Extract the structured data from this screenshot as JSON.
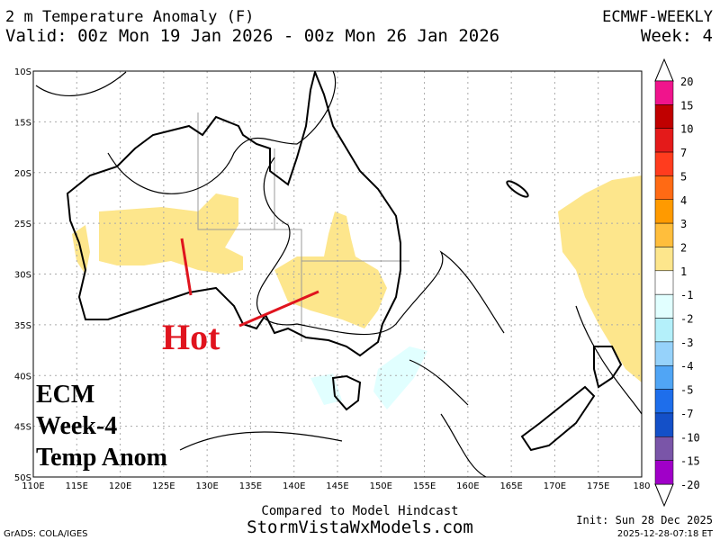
{
  "header": {
    "title": "2 m Temperature Anomaly (F)",
    "valid": "Valid: 00z Mon 19 Jan 2026 - 00z Mon 26 Jan 2026",
    "model": "ECMWF-WEEKLY",
    "week": "Week: 4"
  },
  "map": {
    "lat_labels": [
      "10S",
      "15S",
      "20S",
      "25S",
      "30S",
      "35S",
      "40S",
      "45S",
      "50S"
    ],
    "lon_labels": [
      "110E",
      "115E",
      "120E",
      "125E",
      "130E",
      "135E",
      "140E",
      "145E",
      "150E",
      "155E",
      "160E",
      "165E",
      "170E",
      "175E",
      "180"
    ],
    "annotation": "Hot",
    "overlay": [
      "ECM",
      "Week-4",
      "Temp Anom"
    ]
  },
  "colorbar": {
    "labels": [
      "20",
      "15",
      "10",
      "7",
      "5",
      "4",
      "3",
      "2",
      "1",
      "-1",
      "-2",
      "-3",
      "-4",
      "-5",
      "-7",
      "-10",
      "-15",
      "-20"
    ],
    "colors": [
      "#f0148c",
      "#c00000",
      "#e41a1a",
      "#ff3c1e",
      "#ff6a14",
      "#ff9a00",
      "#ffbe3c",
      "#fde68c",
      "#ffffff",
      "#e1ffff",
      "#b4f0fa",
      "#96d2fa",
      "#50a5f5",
      "#1e6eeb",
      "#1450c8",
      "#7a55a8",
      "#a000c8"
    ]
  },
  "footer": {
    "compared": "Compared to Model Hindcast",
    "site": "StormVistaWxModels.com",
    "grads": "GrADS: COLA/IGES",
    "init": "Init: Sun 28 Dec 2025",
    "stamp": "2025-12-28-07:18 ET"
  }
}
